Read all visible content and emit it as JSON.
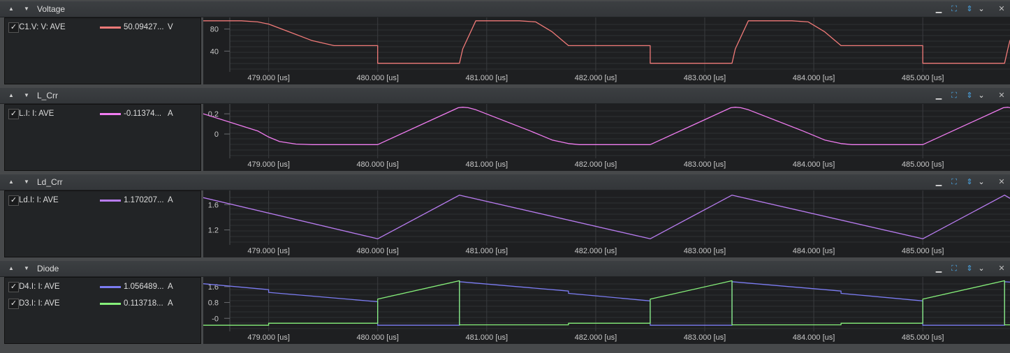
{
  "panels": [
    {
      "title": "Voltage",
      "signals": [
        {
          "name": "C1.V: V: AVE",
          "value": "50.09427...",
          "unit": "V",
          "color": "#f07a78"
        }
      ],
      "y_ticks": [
        "80",
        "40"
      ]
    },
    {
      "title": "L_Crr",
      "signals": [
        {
          "name": "L.I: I: AVE",
          "value": "-0.11374...",
          "unit": "A",
          "color": "#f07cf0"
        }
      ],
      "y_ticks": [
        "0.2",
        "0"
      ]
    },
    {
      "title": "Ld_Crr",
      "signals": [
        {
          "name": "Ld.I: I: AVE",
          "value": "1.170207...",
          "unit": "A",
          "color": "#b87cf0"
        }
      ],
      "y_ticks": [
        "1.6",
        "1.2"
      ]
    },
    {
      "title": "Diode",
      "signals": [
        {
          "name": "D4.I: I: AVE",
          "value": "1.056489...",
          "unit": "A",
          "color": "#7b7cf2"
        },
        {
          "name": "D3.I: I: AVE",
          "value": "0.113718...",
          "unit": "A",
          "color": "#86f07a"
        }
      ],
      "y_ticks": [
        "1.6",
        "0.8",
        "-0"
      ]
    }
  ],
  "x_ticks": [
    "479.000 [us]",
    "480.000 [us]",
    "481.000 [us]",
    "482.000 [us]",
    "483.000 [us]",
    "484.000 [us]",
    "485.000 [us]"
  ],
  "toolbar_icons": [
    "minimize-icon",
    "fit-icon",
    "autoscale-icon",
    "dropdown-icon",
    "close-icon"
  ],
  "colors": {
    "background": "#1e1f21",
    "grid": "#3a3c3f",
    "header": "#3a3d40",
    "accent": "#4aa3df"
  },
  "chart_data": [
    {
      "type": "line",
      "title": "Voltage",
      "x_unit": "us",
      "xlim": [
        478.4,
        485.8
      ],
      "ylim": [
        10,
        96
      ],
      "series": [
        {
          "name": "C1.V: V: AVE",
          "color": "#f07a78",
          "x": [
            478.4,
            478.75,
            478.9,
            479.0,
            479.2,
            479.4,
            479.6,
            480.0,
            480.0,
            480.75,
            480.78,
            480.9,
            481.3,
            481.45,
            481.6,
            481.75,
            482.5,
            482.5,
            483.25,
            483.28,
            483.4,
            483.8,
            483.95,
            484.1,
            484.25,
            485.0,
            485.0,
            485.75,
            485.78,
            485.8
          ],
          "y": [
            95,
            95,
            93,
            89,
            74,
            59,
            50,
            50,
            18,
            18,
            44,
            95,
            95,
            93,
            75,
            50,
            50,
            18,
            18,
            44,
            95,
            95,
            93,
            75,
            50,
            50,
            18,
            18,
            44,
            60
          ]
        }
      ]
    },
    {
      "type": "line",
      "title": "L_Crr",
      "x_unit": "us",
      "xlim": [
        478.4,
        485.8
      ],
      "ylim": [
        -0.2,
        0.27
      ],
      "series": [
        {
          "name": "L.I: I: AVE",
          "color": "#f07cf0",
          "x": [
            478.4,
            478.9,
            479.0,
            479.1,
            479.25,
            479.4,
            480.0,
            480.74,
            480.78,
            480.83,
            480.9,
            481.4,
            481.5,
            481.6,
            481.75,
            481.85,
            482.5,
            483.24,
            483.28,
            483.33,
            483.4,
            483.9,
            484.0,
            484.1,
            484.25,
            484.35,
            485.0,
            485.74,
            485.78,
            485.8
          ],
          "y": [
            0.2,
            0.03,
            -0.03,
            -0.075,
            -0.1,
            -0.105,
            -0.105,
            0.26,
            0.265,
            0.26,
            0.24,
            0.03,
            -0.015,
            -0.06,
            -0.095,
            -0.105,
            -0.105,
            0.26,
            0.265,
            0.26,
            0.24,
            0.03,
            -0.015,
            -0.06,
            -0.095,
            -0.105,
            -0.105,
            0.26,
            0.265,
            0.26
          ]
        }
      ]
    },
    {
      "type": "line",
      "title": "Ld_Crr",
      "x_unit": "us",
      "xlim": [
        478.4,
        485.8
      ],
      "ylim": [
        1.03,
        1.78
      ],
      "series": [
        {
          "name": "Ld.I: I: AVE",
          "color": "#b87cf0",
          "x": [
            478.4,
            480.0,
            480.75,
            482.5,
            483.25,
            485.0,
            485.75,
            485.8
          ],
          "y": [
            1.71,
            1.06,
            1.75,
            1.06,
            1.75,
            1.06,
            1.75,
            1.7
          ]
        }
      ]
    },
    {
      "type": "line",
      "title": "Diode",
      "x_unit": "us",
      "xlim": [
        478.4,
        485.8
      ],
      "ylim": [
        -0.45,
        1.95
      ],
      "series": [
        {
          "name": "D4.I: I: AVE",
          "color": "#7b7cf2",
          "x": [
            478.4,
            479.0,
            479.0,
            480.0,
            480.0,
            480.75,
            480.75,
            481.75,
            481.75,
            482.5,
            482.5,
            483.25,
            483.25,
            484.25,
            484.25,
            485.0,
            485.0,
            485.75,
            485.75,
            485.8
          ],
          "y": [
            1.75,
            1.45,
            1.31,
            0.84,
            -0.35,
            -0.35,
            1.85,
            1.38,
            1.26,
            0.88,
            -0.35,
            -0.35,
            1.85,
            1.38,
            1.26,
            0.88,
            -0.35,
            -0.35,
            1.85,
            1.83
          ]
        },
        {
          "name": "D3.I: I: AVE",
          "color": "#86f07a",
          "x": [
            478.4,
            479.0,
            479.0,
            480.0,
            480.0,
            480.75,
            480.75,
            481.75,
            481.75,
            482.5,
            482.5,
            483.25,
            483.25,
            484.25,
            484.25,
            485.0,
            485.0,
            485.75,
            485.75,
            485.8
          ],
          "y": [
            -0.35,
            -0.35,
            -0.25,
            -0.25,
            0.97,
            1.9,
            -0.33,
            -0.33,
            -0.25,
            -0.25,
            0.97,
            1.9,
            -0.33,
            -0.33,
            -0.25,
            -0.25,
            0.97,
            1.9,
            -0.33,
            -0.33
          ]
        }
      ]
    }
  ]
}
